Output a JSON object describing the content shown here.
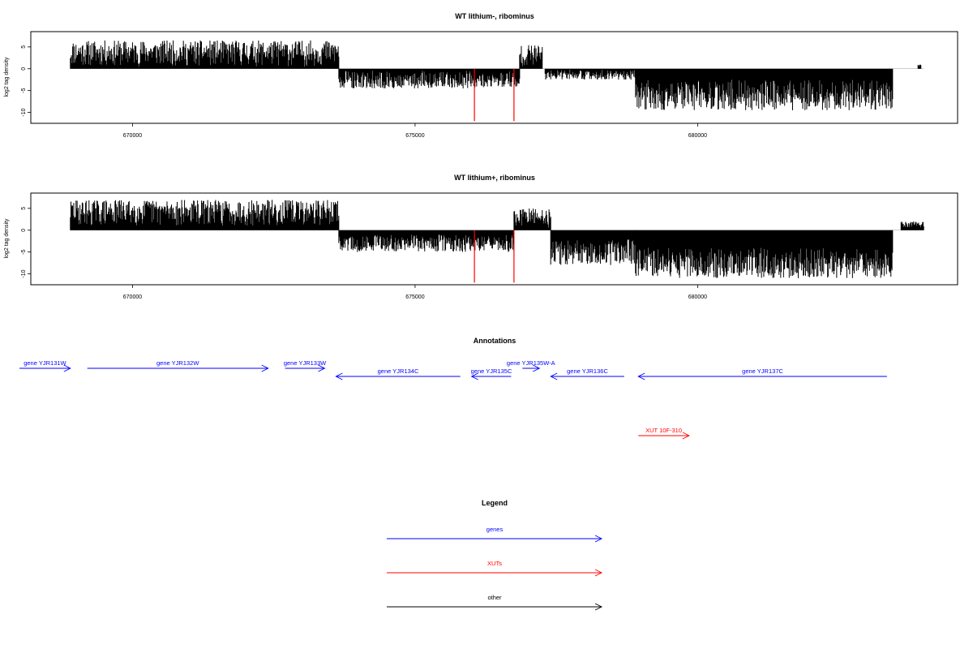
{
  "chart_data": [
    {
      "type": "bar",
      "title": "WT lithium-, ribominus",
      "ylabel": "log2 tag density",
      "xlim": [
        668200,
        684600
      ],
      "ylim": [
        -12.5,
        8.5
      ],
      "x_ticks": [
        670000,
        675000,
        680000
      ],
      "y_ticks": [
        5,
        0,
        -5,
        -10
      ],
      "baseline_range": [
        668900,
        684000
      ],
      "density_profile": [
        {
          "from": 668900,
          "to": 673650,
          "min": 0.5,
          "max": 6.5
        },
        {
          "from": 673650,
          "to": 676850,
          "min": -4.5,
          "max": -0.3
        },
        {
          "from": 676850,
          "to": 677250,
          "min": 0.5,
          "max": 5.5
        },
        {
          "from": 677300,
          "to": 678900,
          "min": -2.5,
          "max": -0.2
        },
        {
          "from": 678900,
          "to": 683450,
          "min": -9.5,
          "max": -2.5
        },
        {
          "from": 683900,
          "to": 683950,
          "min": 0.5,
          "max": 1.0
        }
      ],
      "highlight_bars": [
        {
          "x": 676050,
          "y": -12
        },
        {
          "x": 676750,
          "y": -12
        }
      ],
      "highlight_color": "#ff0000"
    },
    {
      "type": "bar",
      "title": "WT lithium+, ribominus",
      "ylabel": "log2 tag density",
      "xlim": [
        668200,
        684600
      ],
      "ylim": [
        -12.5,
        8.5
      ],
      "x_ticks": [
        670000,
        675000,
        680000
      ],
      "y_ticks": [
        5,
        0,
        -5,
        -10
      ],
      "baseline_range": [
        668900,
        684000
      ],
      "density_profile": [
        {
          "from": 668900,
          "to": 673650,
          "min": 1.0,
          "max": 7.0
        },
        {
          "from": 673650,
          "to": 676750,
          "min": -5.0,
          "max": -1.0
        },
        {
          "from": 676750,
          "to": 677400,
          "min": 0.5,
          "max": 5.0
        },
        {
          "from": 677400,
          "to": 678900,
          "min": -8.0,
          "max": -2.0
        },
        {
          "from": 678900,
          "to": 683450,
          "min": -11.0,
          "max": -4.0
        },
        {
          "from": 683600,
          "to": 684000,
          "min": 0.5,
          "max": 2.0
        }
      ],
      "highlight_bars": [
        {
          "x": 676050,
          "y": -12
        },
        {
          "x": 676750,
          "y": -12
        }
      ],
      "highlight_color": "#ff0000"
    }
  ],
  "annotations": {
    "title": "Annotations",
    "features": [
      {
        "label": "gene YJR131W",
        "start": 668000,
        "end": 668900,
        "strand": "+",
        "row": 0,
        "kind": "gene"
      },
      {
        "label": "gene YJR132W",
        "start": 669200,
        "end": 672400,
        "strand": "+",
        "row": 0,
        "kind": "gene"
      },
      {
        "label": "gene YJR133W",
        "start": 672700,
        "end": 673400,
        "strand": "+",
        "row": 0,
        "kind": "gene"
      },
      {
        "label": "gene YJR134C",
        "start": 673600,
        "end": 675800,
        "strand": "-",
        "row": 1,
        "kind": "gene"
      },
      {
        "label": "gene YJR135C",
        "start": 676000,
        "end": 676700,
        "strand": "-",
        "row": 1,
        "kind": "gene"
      },
      {
        "label": "gene YJR135W-A",
        "start": 676900,
        "end": 677200,
        "strand": "+",
        "row": 0,
        "kind": "gene"
      },
      {
        "label": "gene YJR136C",
        "start": 677400,
        "end": 678700,
        "strand": "-",
        "row": 1,
        "kind": "gene"
      },
      {
        "label": "gene YJR137C",
        "start": 678950,
        "end": 683350,
        "strand": "-",
        "row": 1,
        "kind": "gene"
      },
      {
        "label": "XUT 10F-310",
        "start": 678950,
        "end": 679850,
        "strand": "+",
        "row": 2,
        "kind": "xut"
      }
    ]
  },
  "legend": {
    "title": "Legend",
    "items": [
      {
        "label": "genes",
        "color": "#0000ff"
      },
      {
        "label": "XUTs",
        "color": "#ff0000"
      },
      {
        "label": "other",
        "color": "#000000"
      }
    ]
  }
}
